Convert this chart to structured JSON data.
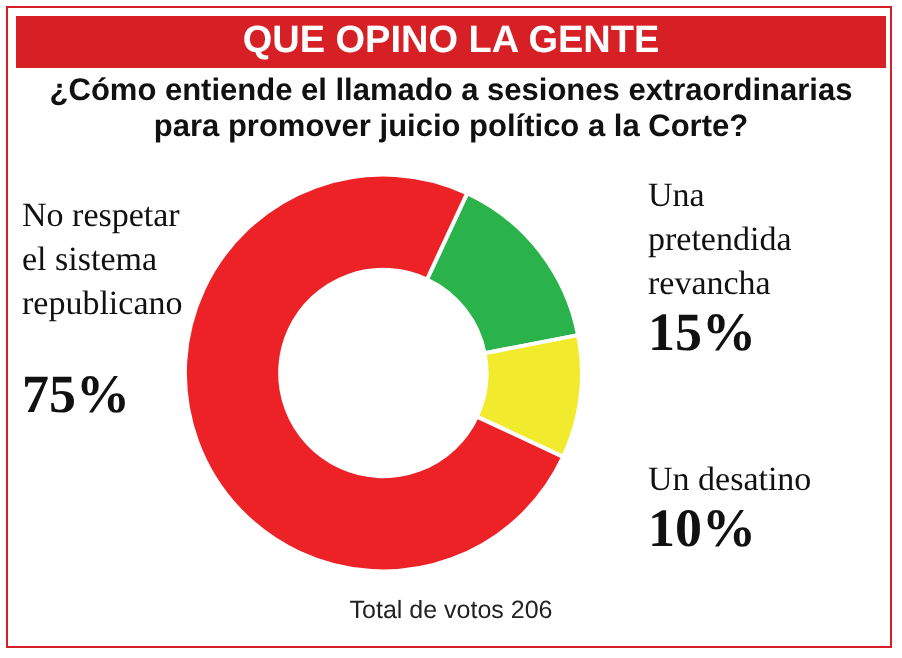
{
  "chart_data": {
    "type": "donut",
    "title": "QUE OPINO LA GENTE",
    "subtitle": "¿Cómo entiende el llamado a sesiones extraordinarias para promover juicio político a la Corte?",
    "categories": [
      "Una pretendida revancha",
      "Un desatino",
      "No respetar el sistema republicano"
    ],
    "values": [
      15,
      10,
      75
    ],
    "colors": [
      "#2ab34b",
      "#f2ea2c",
      "#ec2227"
    ],
    "value_labels": [
      "15%",
      "10%",
      "75%"
    ],
    "legend": false,
    "annotations": [
      "Total de votos 206"
    ]
  }
}
